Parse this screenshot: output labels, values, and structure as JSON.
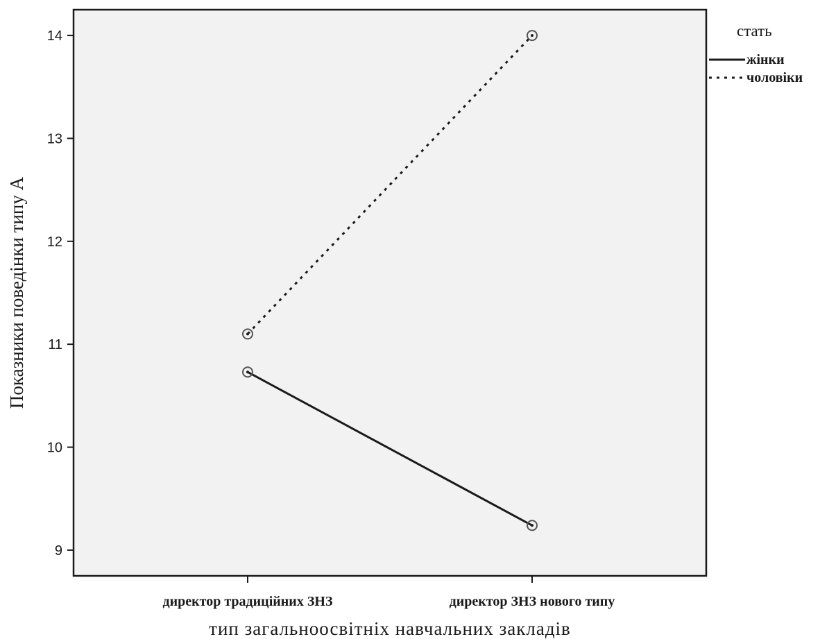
{
  "chart_data": {
    "type": "line",
    "categories": [
      "директор традиційних ЗНЗ",
      "директор ЗНЗ нового типу"
    ],
    "series": [
      {
        "name": "жінки",
        "values": [
          10.73,
          9.24
        ],
        "line_style": "solid"
      },
      {
        "name": "чоловіки",
        "values": [
          11.1,
          14.0
        ],
        "line_style": "dotted"
      }
    ],
    "xlabel": "тип загальноосвітніх навчальних закладів",
    "ylabel": "Показники поведінки типу А",
    "ylim": [
      8.75,
      14.25
    ],
    "yticks": [
      9,
      10,
      11,
      12,
      13,
      14
    ],
    "legend": {
      "title": "стать",
      "placement": "right-top"
    },
    "grid": false,
    "colors": {
      "plot_background": "#f2f2f2",
      "line": "#1a1a1a",
      "marker": "#555555"
    }
  }
}
